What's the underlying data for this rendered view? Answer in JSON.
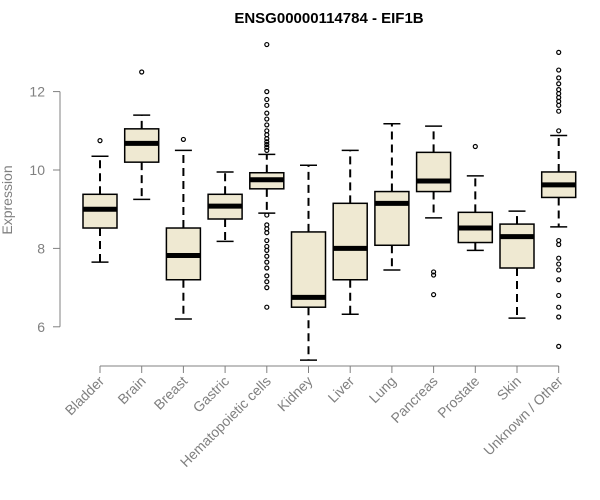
{
  "chart_data": {
    "type": "boxplot",
    "title": "ENSG00000114784 - EIF1B",
    "xlabel": "",
    "ylabel": "Expression",
    "ylim": [
      5,
      13.3
    ],
    "yticks": [
      6,
      8,
      10,
      12
    ],
    "colors": {
      "box_fill": "#efe9d2",
      "stroke": "#000000",
      "axis": "#808080",
      "text": "#808080"
    },
    "categories": [
      "Bladder",
      "Brain",
      "Breast",
      "Gastric",
      "Hematopoietic cells",
      "Kidney",
      "Liver",
      "Lung",
      "Pancreas",
      "Prostate",
      "Skin",
      "Unknown / Other"
    ],
    "boxes": [
      {
        "name": "Bladder",
        "whisker_low": 7.65,
        "q1": 8.52,
        "median": 9.0,
        "q3": 9.38,
        "whisker_high": 10.35,
        "outliers": [
          10.75
        ]
      },
      {
        "name": "Brain",
        "whisker_low": 9.25,
        "q1": 10.2,
        "median": 10.68,
        "q3": 11.05,
        "whisker_high": 11.4,
        "outliers": [
          12.5
        ]
      },
      {
        "name": "Breast",
        "whisker_low": 6.2,
        "q1": 7.2,
        "median": 7.82,
        "q3": 8.52,
        "whisker_high": 10.5,
        "outliers": [
          10.78
        ]
      },
      {
        "name": "Gastric",
        "whisker_low": 8.18,
        "q1": 8.75,
        "median": 9.08,
        "q3": 9.38,
        "whisker_high": 9.95,
        "outliers": []
      },
      {
        "name": "Hematopoietic cells",
        "whisker_low": 8.9,
        "q1": 9.52,
        "median": 9.75,
        "q3": 9.93,
        "whisker_high": 10.4,
        "outliers": [
          13.2,
          12.0,
          11.8,
          11.65,
          11.45,
          11.3,
          11.15,
          11.0,
          10.9,
          10.8,
          10.72,
          10.65,
          10.58,
          10.5,
          8.85,
          8.6,
          8.5,
          8.4,
          8.2,
          8.05,
          7.95,
          7.8,
          7.65,
          7.5,
          7.3,
          7.15,
          7.0,
          6.5
        ]
      },
      {
        "name": "Kidney",
        "whisker_low": 5.15,
        "q1": 6.5,
        "median": 6.75,
        "q3": 8.42,
        "whisker_high": 10.12,
        "outliers": []
      },
      {
        "name": "Liver",
        "whisker_low": 6.32,
        "q1": 7.2,
        "median": 8.0,
        "q3": 9.15,
        "whisker_high": 10.5,
        "outliers": []
      },
      {
        "name": "Lung",
        "whisker_low": 7.45,
        "q1": 8.08,
        "median": 9.15,
        "q3": 9.45,
        "whisker_high": 11.18,
        "outliers": []
      },
      {
        "name": "Pancreas",
        "whisker_low": 8.78,
        "q1": 9.45,
        "median": 9.72,
        "q3": 10.45,
        "whisker_high": 11.12,
        "outliers": [
          7.4,
          7.32,
          6.82
        ]
      },
      {
        "name": "Prostate",
        "whisker_low": 7.95,
        "q1": 8.15,
        "median": 8.52,
        "q3": 8.92,
        "whisker_high": 9.85,
        "outliers": [
          10.6
        ]
      },
      {
        "name": "Skin",
        "whisker_low": 6.22,
        "q1": 7.5,
        "median": 8.3,
        "q3": 8.62,
        "whisker_high": 8.95,
        "outliers": []
      },
      {
        "name": "Unknown / Other",
        "whisker_low": 8.55,
        "q1": 9.3,
        "median": 9.62,
        "q3": 9.95,
        "whisker_high": 10.88,
        "outliers": [
          13.0,
          12.55,
          12.35,
          12.2,
          12.05,
          11.95,
          11.85,
          11.75,
          11.65,
          11.5,
          11.0,
          8.2,
          8.1,
          7.75,
          7.6,
          7.45,
          7.2,
          6.8,
          6.5,
          6.25,
          5.5
        ]
      }
    ]
  }
}
